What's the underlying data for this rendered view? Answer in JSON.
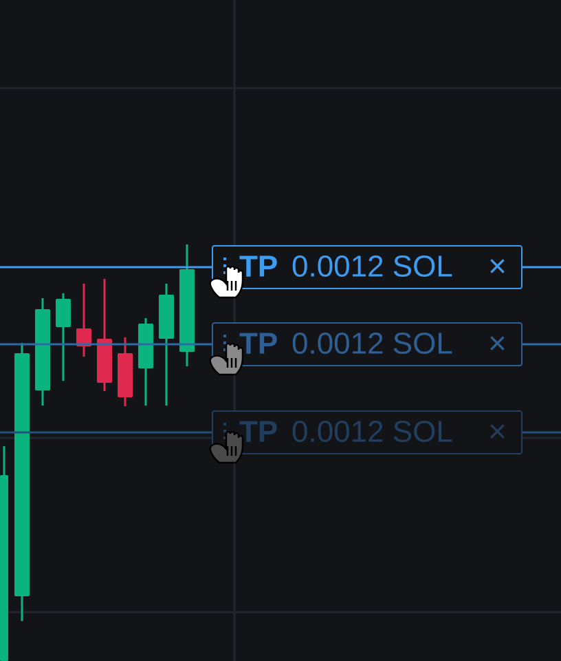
{
  "orders": [
    {
      "tag": "TP",
      "amount": "0.0012 SOL",
      "close": "×"
    },
    {
      "tag": "TP",
      "amount": "0.0012 SOL",
      "close": "×"
    },
    {
      "tag": "TP",
      "amount": "0.0012 SOL",
      "close": "×"
    }
  ]
}
